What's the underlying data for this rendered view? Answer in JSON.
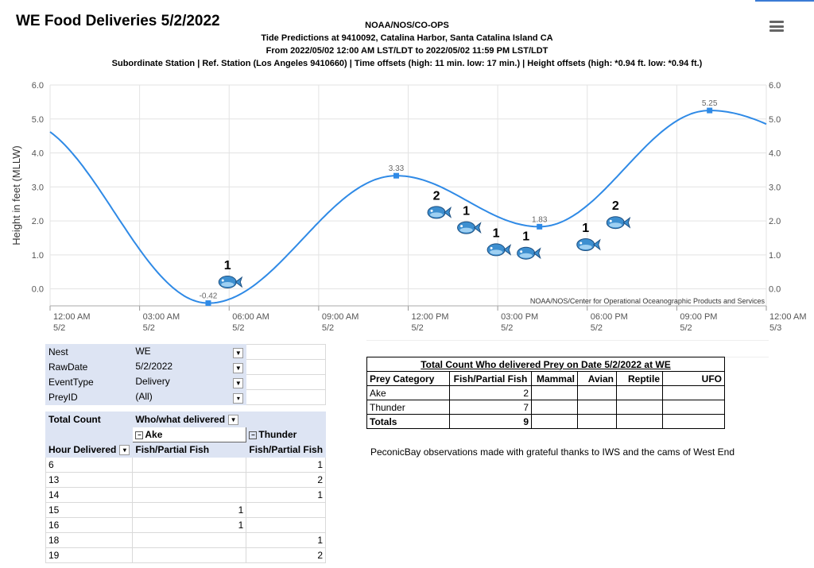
{
  "page": {
    "title": "WE Food Deliveries 5/2/2022",
    "header_lines": [
      "NOAA/NOS/CO-OPS",
      "Tide Predictions at 9410092, Catalina Harbor, Santa Catalina Island CA",
      "From 2022/05/02 12:00 AM LST/LDT to 2022/05/02 11:59 PM LST/LDT",
      "Subordinate Station | Ref. Station (Los Angeles 9410660) | Time offsets (high: 11 min. low: 17 min.) | Height offsets (high: *0.94 ft. low: *0.94 ft.)"
    ],
    "menu_icon": "hamburger-menu-icon"
  },
  "chart_data": {
    "type": "line",
    "ylabel": "Height in feet (MLLW)",
    "ylim": [
      -0.5,
      6.0
    ],
    "yticks": [
      "6.0",
      "5.0",
      "4.0",
      "3.0",
      "2.0",
      "1.0",
      "0.0"
    ],
    "xlim": [
      0,
      24
    ],
    "xtick_labels": [
      [
        "12:00 AM",
        "5/2"
      ],
      [
        "03:00 AM",
        "5/2"
      ],
      [
        "06:00 AM",
        "5/2"
      ],
      [
        "09:00 AM",
        "5/2"
      ],
      [
        "12:00 PM",
        "5/2"
      ],
      [
        "03:00 PM",
        "5/2"
      ],
      [
        "06:00 PM",
        "5/2"
      ],
      [
        "09:00 PM",
        "5/2"
      ],
      [
        "12:00 AM",
        "5/3"
      ]
    ],
    "series_color": "#2f8ae6",
    "extrema": [
      {
        "x": 5.3,
        "y": -0.42,
        "label": "-0.42"
      },
      {
        "x": 11.6,
        "y": 3.33,
        "label": "3.33"
      },
      {
        "x": 16.4,
        "y": 1.83,
        "label": "1.83"
      },
      {
        "x": 22.1,
        "y": 5.25,
        "label": "5.25"
      }
    ],
    "start_value": 4.62,
    "end_value": 4.85,
    "credit": "NOAA/NOS/Center for Operational Oceanographic Products and Services",
    "annotations": [
      {
        "x": 6,
        "y": 0.2,
        "count": "1",
        "icon": "fish-icon"
      },
      {
        "x": 13,
        "y": 2.25,
        "count": "2",
        "icon": "fish-icon"
      },
      {
        "x": 14,
        "y": 1.8,
        "count": "1",
        "icon": "fish-icon"
      },
      {
        "x": 15,
        "y": 1.15,
        "count": "1",
        "icon": "fish-icon"
      },
      {
        "x": 16,
        "y": 1.05,
        "count": "1",
        "icon": "fish-icon"
      },
      {
        "x": 18,
        "y": 1.3,
        "count": "1",
        "icon": "fish-icon"
      },
      {
        "x": 19,
        "y": 1.95,
        "count": "2",
        "icon": "fish-icon"
      }
    ]
  },
  "pivot": {
    "filters": [
      {
        "label": "Nest",
        "value": "WE"
      },
      {
        "label": "RawDate",
        "value": "5/2/2022"
      },
      {
        "label": "EventType",
        "value": "Delivery"
      },
      {
        "label": "PreyID",
        "value": "(All)"
      }
    ],
    "total_count": "Total Count",
    "col_field": "Who/what delivered",
    "groups": [
      "Ake",
      "Thunder"
    ],
    "row_field": "Hour Delivered",
    "sub_header": "Fish/Partial Fish",
    "rows": [
      {
        "hour": "6",
        "ake": "",
        "thunder": "1"
      },
      {
        "hour": "13",
        "ake": "",
        "thunder": "2"
      },
      {
        "hour": "14",
        "ake": "",
        "thunder": "1"
      },
      {
        "hour": "15",
        "ake": "1",
        "thunder": ""
      },
      {
        "hour": "16",
        "ake": "1",
        "thunder": ""
      },
      {
        "hour": "18",
        "ake": "",
        "thunder": "1"
      },
      {
        "hour": "19",
        "ake": "",
        "thunder": "2"
      }
    ]
  },
  "summary": {
    "title": "Total Count Who delivered Prey on Date 5/2/2022 at WE",
    "headers": [
      "Prey Category",
      "Fish/Partial Fish",
      "Mammal",
      "Avian",
      "Reptile",
      "UFO"
    ],
    "rows": [
      {
        "name": "Ake",
        "fish": "2"
      },
      {
        "name": "Thunder",
        "fish": "7"
      },
      {
        "name": "Totals",
        "fish": "9"
      }
    ],
    "thanks": "PeconicBay observations made with grateful thanks to IWS and the cams of West End"
  }
}
